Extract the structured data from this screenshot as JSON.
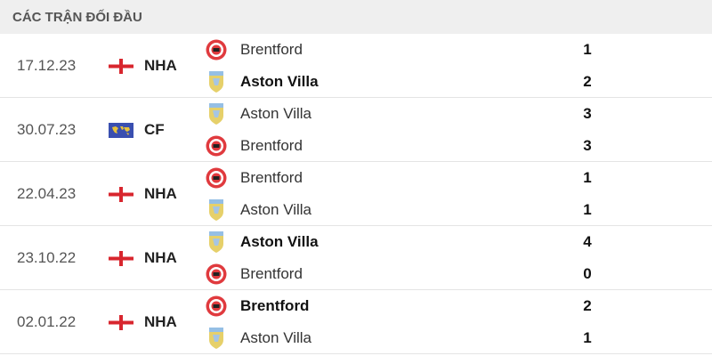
{
  "title": "CÁC TRẬN ĐỐI ĐẦU",
  "matches": [
    {
      "date": "17.12.23",
      "flag": "england-flag",
      "competition": "NHA",
      "teams": [
        {
          "name": "Brentford",
          "logo": "brentford-logo",
          "score": "1",
          "win": false
        },
        {
          "name": "Aston Villa",
          "logo": "aston-villa-logo",
          "score": "2",
          "win": true
        }
      ]
    },
    {
      "date": "30.07.23",
      "flag": "world-flag",
      "competition": "CF",
      "teams": [
        {
          "name": "Aston Villa",
          "logo": "aston-villa-logo",
          "score": "3",
          "win": false
        },
        {
          "name": "Brentford",
          "logo": "brentford-logo",
          "score": "3",
          "win": false
        }
      ]
    },
    {
      "date": "22.04.23",
      "flag": "england-flag",
      "competition": "NHA",
      "teams": [
        {
          "name": "Brentford",
          "logo": "brentford-logo",
          "score": "1",
          "win": false
        },
        {
          "name": "Aston Villa",
          "logo": "aston-villa-logo",
          "score": "1",
          "win": false
        }
      ]
    },
    {
      "date": "23.10.22",
      "flag": "england-flag",
      "competition": "NHA",
      "teams": [
        {
          "name": "Aston Villa",
          "logo": "aston-villa-logo",
          "score": "4",
          "win": true
        },
        {
          "name": "Brentford",
          "logo": "brentford-logo",
          "score": "0",
          "win": false
        }
      ]
    },
    {
      "date": "02.01.22",
      "flag": "england-flag",
      "competition": "NHA",
      "teams": [
        {
          "name": "Brentford",
          "logo": "brentford-logo",
          "score": "2",
          "win": true
        },
        {
          "name": "Aston Villa",
          "logo": "aston-villa-logo",
          "score": "1",
          "win": false
        }
      ]
    }
  ]
}
